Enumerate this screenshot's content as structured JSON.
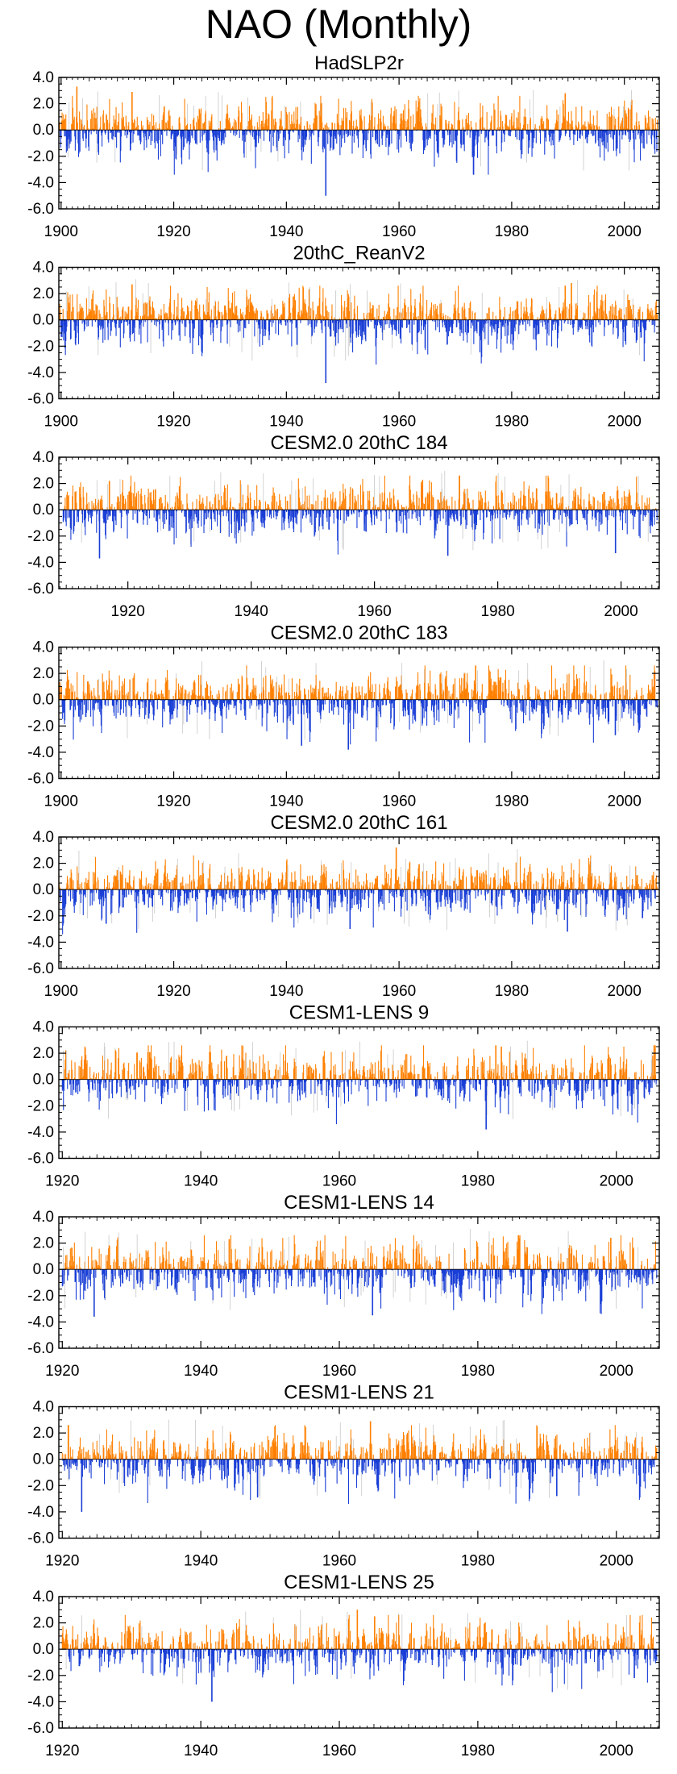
{
  "figure_title": "NAO (Monthly)",
  "colors": {
    "positive": "#ff8000",
    "negative": "#1a3fd6",
    "axis": "#000000"
  },
  "chart_data": [
    {
      "type": "bar",
      "title": "HadSLP2r",
      "xlabel": "",
      "ylabel": "",
      "x_start": 1899.6,
      "x_end": 2005.9,
      "xlim": [
        1899.6,
        2006.2
      ],
      "ylim": [
        -6.0,
        4.0
      ],
      "xticks": [
        1900,
        1920,
        1940,
        1960,
        1980,
        2000
      ],
      "xtick_labels": [
        "1900",
        "1920",
        "1940",
        "1960",
        "1980",
        "2000"
      ],
      "yticks": [
        4.0,
        2.0,
        0.0,
        -2.0,
        -4.0,
        -6.0
      ],
      "ytick_labels": [
        "4.0",
        "2.0",
        "0.0",
        "-2.0",
        "-4.0",
        "-6.0"
      ],
      "seed": 11,
      "extremes": [
        [
          1947.0,
          -5.0
        ],
        [
          1902.8,
          3.3
        ],
        [
          1912.6,
          2.9
        ],
        [
          1989.5,
          2.8
        ]
      ]
    },
    {
      "type": "bar",
      "title": "20thC_ReanV2",
      "xlabel": "",
      "ylabel": "",
      "x_start": 1899.6,
      "x_end": 2005.9,
      "xlim": [
        1899.6,
        2006.2
      ],
      "ylim": [
        -6.0,
        4.0
      ],
      "xticks": [
        1900,
        1920,
        1940,
        1960,
        1980,
        2000
      ],
      "xtick_labels": [
        "1900",
        "1920",
        "1940",
        "1960",
        "1980",
        "2000"
      ],
      "yticks": [
        4.0,
        2.0,
        0.0,
        -2.0,
        -4.0,
        -6.0
      ],
      "ytick_labels": [
        "4.0",
        "2.0",
        "0.0",
        "-2.0",
        "-4.0",
        "-6.0"
      ],
      "seed": 23,
      "extremes": [
        [
          1947.0,
          -4.8
        ],
        [
          1912.6,
          2.7
        ],
        [
          1989.5,
          2.6
        ],
        [
          1990.6,
          2.8
        ]
      ]
    },
    {
      "type": "bar",
      "title": "CESM2.0 20thC 184",
      "xlabel": "",
      "ylabel": "",
      "x_start": 1909.5,
      "x_end": 2005.9,
      "xlim": [
        1908.8,
        2006.2
      ],
      "ylim": [
        -6.0,
        4.0
      ],
      "xticks": [
        1920,
        1940,
        1960,
        1980,
        2000
      ],
      "xtick_labels": [
        "1920",
        "1940",
        "1960",
        "1980",
        "2000"
      ],
      "yticks": [
        4.0,
        2.0,
        0.0,
        -2.0,
        -4.0,
        -6.0
      ],
      "ytick_labels": [
        "4.0",
        "2.0",
        "0.0",
        "-2.0",
        "-4.0",
        "-6.0"
      ],
      "seed": 37,
      "extremes": [
        [
          1915.4,
          -3.7
        ],
        [
          1971.9,
          -3.5
        ],
        [
          1999.1,
          -3.3
        ],
        [
          1917.0,
          2.2
        ]
      ]
    },
    {
      "type": "bar",
      "title": "CESM2.0 20thC 183",
      "xlabel": "",
      "ylabel": "",
      "x_start": 1899.6,
      "x_end": 2005.9,
      "xlim": [
        1899.6,
        2006.2
      ],
      "ylim": [
        -6.0,
        4.0
      ],
      "xticks": [
        1900,
        1920,
        1940,
        1960,
        1980,
        2000
      ],
      "xtick_labels": [
        "1900",
        "1920",
        "1940",
        "1960",
        "1980",
        "2000"
      ],
      "yticks": [
        4.0,
        2.0,
        0.0,
        -2.0,
        -4.0,
        -6.0
      ],
      "ytick_labels": [
        "4.0",
        "2.0",
        "0.0",
        "-2.0",
        "-4.0",
        "-6.0"
      ],
      "seed": 41,
      "extremes": [
        [
          1942.7,
          -3.5
        ],
        [
          1951.0,
          -3.8
        ],
        [
          1973.6,
          2.6
        ],
        [
          1998.4,
          -2.7
        ]
      ]
    },
    {
      "type": "bar",
      "title": "CESM2.0 20thC 161",
      "xlabel": "",
      "ylabel": "",
      "x_start": 1899.6,
      "x_end": 2005.9,
      "xlim": [
        1899.6,
        2006.2
      ],
      "ylim": [
        -6.0,
        4.0
      ],
      "xticks": [
        1900,
        1920,
        1940,
        1960,
        1980,
        2000
      ],
      "xtick_labels": [
        "1900",
        "1920",
        "1940",
        "1960",
        "1980",
        "2000"
      ],
      "yticks": [
        4.0,
        2.0,
        0.0,
        -2.0,
        -4.0,
        -6.0
      ],
      "ytick_labels": [
        "4.0",
        "2.0",
        "0.0",
        "-2.0",
        "-4.0",
        "-6.0"
      ],
      "seed": 53,
      "extremes": [
        [
          1908.0,
          -2.6
        ],
        [
          1951.3,
          -3.0
        ],
        [
          1959.5,
          3.2
        ],
        [
          1989.9,
          -3.2
        ]
      ]
    },
    {
      "type": "bar",
      "title": "CESM1-LENS 9",
      "xlabel": "",
      "ylabel": "",
      "x_start": 1920.0,
      "x_end": 2005.9,
      "xlim": [
        1919.5,
        2006.2
      ],
      "ylim": [
        -6.0,
        4.0
      ],
      "xticks": [
        1920,
        1940,
        1960,
        1980,
        2000
      ],
      "xtick_labels": [
        "1920",
        "1940",
        "1960",
        "1980",
        "2000"
      ],
      "yticks": [
        4.0,
        2.0,
        0.0,
        -2.0,
        -4.0,
        -6.0
      ],
      "ytick_labels": [
        "4.0",
        "2.0",
        "0.0",
        "-2.0",
        "-4.0",
        "-6.0"
      ],
      "seed": 67,
      "extremes": [
        [
          1981.2,
          -3.8
        ],
        [
          1982.6,
          2.6
        ],
        [
          1983.4,
          2.5
        ],
        [
          2005.6,
          2.6
        ]
      ]
    },
    {
      "type": "bar",
      "title": "CESM1-LENS 14",
      "xlabel": "",
      "ylabel": "",
      "x_start": 1920.0,
      "x_end": 2005.9,
      "xlim": [
        1919.5,
        2006.2
      ],
      "ylim": [
        -6.0,
        4.0
      ],
      "xticks": [
        1920,
        1940,
        1960,
        1980,
        2000
      ],
      "xtick_labels": [
        "1920",
        "1940",
        "1960",
        "1980",
        "2000"
      ],
      "yticks": [
        4.0,
        2.0,
        0.0,
        -2.0,
        -4.0,
        -6.0
      ],
      "ytick_labels": [
        "4.0",
        "2.0",
        "0.0",
        "-2.0",
        "-4.0",
        "-6.0"
      ],
      "seed": 79,
      "extremes": [
        [
          1924.6,
          -3.6
        ],
        [
          1964.8,
          -3.5
        ],
        [
          1944.1,
          2.3
        ],
        [
          1999.2,
          2.4
        ]
      ]
    },
    {
      "type": "bar",
      "title": "CESM1-LENS 21",
      "xlabel": "",
      "ylabel": "",
      "x_start": 1920.0,
      "x_end": 2005.9,
      "xlim": [
        1919.5,
        2006.2
      ],
      "ylim": [
        -6.0,
        4.0
      ],
      "xticks": [
        1920,
        1940,
        1960,
        1980,
        2000
      ],
      "xtick_labels": [
        "1920",
        "1940",
        "1960",
        "1980",
        "2000"
      ],
      "yticks": [
        4.0,
        2.0,
        0.0,
        -2.0,
        -4.0,
        -6.0
      ],
      "ytick_labels": [
        "4.0",
        "2.0",
        "0.0",
        "-2.0",
        "-4.0",
        "-6.0"
      ],
      "seed": 83,
      "extremes": [
        [
          1922.8,
          -4.0
        ],
        [
          1964.5,
          2.9
        ],
        [
          1948.2,
          -2.9
        ],
        [
          1991.4,
          -2.8
        ]
      ]
    },
    {
      "type": "bar",
      "title": "CESM1-LENS 25",
      "xlabel": "",
      "ylabel": "",
      "x_start": 1920.0,
      "x_end": 2005.9,
      "xlim": [
        1919.5,
        2006.2
      ],
      "ylim": [
        -6.0,
        4.0
      ],
      "xticks": [
        1920,
        1940,
        1960,
        1980,
        2000
      ],
      "xtick_labels": [
        "1920",
        "1940",
        "1960",
        "1980",
        "2000"
      ],
      "yticks": [
        4.0,
        2.0,
        0.0,
        -2.0,
        -4.0,
        -6.0
      ],
      "ytick_labels": [
        "4.0",
        "2.0",
        "0.0",
        "-2.0",
        "-4.0",
        "-6.0"
      ],
      "seed": 97,
      "extremes": [
        [
          1941.6,
          -4.0
        ],
        [
          1962.6,
          3.0
        ],
        [
          1965.1,
          2.5
        ],
        [
          2002.6,
          -2.2
        ]
      ]
    }
  ]
}
